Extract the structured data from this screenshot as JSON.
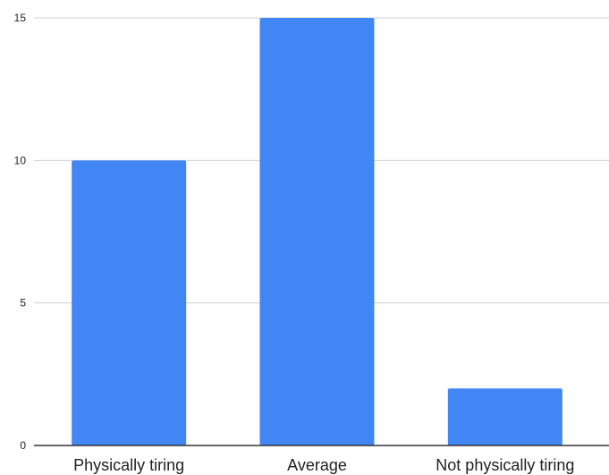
{
  "chart_data": {
    "type": "bar",
    "title": "",
    "xlabel": "",
    "ylabel": "",
    "categories": [
      "Physically tiring",
      "Average",
      "Not physically tiring"
    ],
    "values": [
      10,
      15,
      2
    ],
    "ylim": [
      0,
      15
    ],
    "yticks": [
      0,
      5,
      10,
      15
    ],
    "grid": true,
    "legend": "none",
    "colors": {
      "bar": "#4285f4",
      "gridline": "#d0d0d0",
      "axis": "#333333"
    }
  }
}
